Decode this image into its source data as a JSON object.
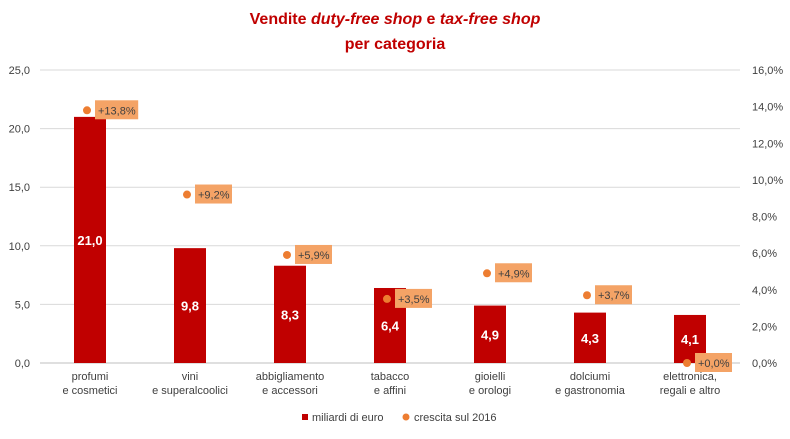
{
  "title": {
    "line1_plain": "Vendite ",
    "line1_italic1": "duty-free shop",
    "line1_mid": " e ",
    "line1_italic2": "tax-free shop",
    "line2": "per categoria"
  },
  "colors": {
    "bar": "#c00000",
    "dot": "#ed7d31",
    "growth_label_bg": "#f4a366",
    "grid": "#d9d9d9"
  },
  "legend": {
    "bar_label": "miliardi di euro",
    "dot_label": "crescita sul 2016"
  },
  "chart_data": {
    "type": "bar",
    "categories": [
      "profumi\ne cosmetici",
      "vini\ne superalcoolici",
      "abbigliamento\ne accessori",
      "tabacco\ne affini",
      "gioielli\ne orologi",
      "dolciumi\ne gastronomia",
      "elettronica,\nregali e altro"
    ],
    "series": [
      {
        "name": "miliardi di euro",
        "type": "bar",
        "axis": "left",
        "values": [
          21.0,
          9.8,
          8.3,
          6.4,
          4.9,
          4.3,
          4.1
        ],
        "labels": [
          "21,0",
          "9,8",
          "8,3",
          "6,4",
          "4,9",
          "4,3",
          "4,1"
        ]
      },
      {
        "name": "crescita sul 2016",
        "type": "scatter",
        "axis": "right",
        "values": [
          13.8,
          9.2,
          5.9,
          3.5,
          4.9,
          3.7,
          0.0
        ],
        "labels": [
          "+13,8%",
          "+9,2%",
          "+5,9%",
          "+3,5%",
          "+4,9%",
          "+3,7%",
          "+0,0%"
        ]
      }
    ],
    "ylim": [
      0,
      25
    ],
    "y_ticks": [
      "0,0",
      "5,0",
      "10,0",
      "15,0",
      "20,0",
      "25,0"
    ],
    "y2lim": [
      0,
      16
    ],
    "y2_ticks": [
      "0,0%",
      "2,0%",
      "4,0%",
      "6,0%",
      "8,0%",
      "10,0%",
      "12,0%",
      "14,0%",
      "16,0%"
    ],
    "grid": true,
    "legend_position": "bottom"
  }
}
